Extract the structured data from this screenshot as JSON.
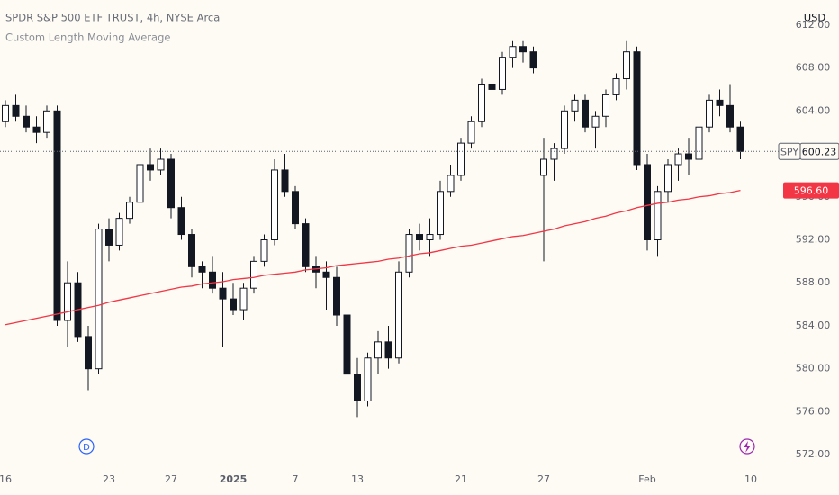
{
  "header": {
    "symbol_title": "SPDR S&P 500 ETF TRUST, 4h, NYSE Arca",
    "indicator": "Custom Length Moving Average",
    "currency": "USD"
  },
  "chart_data": {
    "type": "candlestick",
    "open": [
      603,
      604.5,
      603.5,
      602.5,
      602,
      604,
      584.5,
      588,
      583,
      580,
      593,
      591.5,
      594,
      595.5,
      599,
      598.5,
      599.5,
      595,
      592.5,
      589.5,
      589,
      587.5,
      586.5,
      585.5,
      587.5,
      590,
      592,
      598.5,
      596.5,
      593.5,
      589.5,
      589,
      588.5,
      585,
      579.5,
      577,
      581,
      582.5,
      581,
      589,
      592.5,
      592,
      592.5,
      596.5,
      598,
      601,
      603,
      606.5,
      606,
      609,
      610,
      609.5,
      598,
      599.5,
      600.5,
      604,
      605,
      602.5,
      603.5,
      605.5,
      607,
      609.5,
      599,
      592,
      596.5,
      599,
      600,
      599.5,
      602.5,
      605,
      604.5,
      602.5
    ],
    "high": [
      605,
      605.5,
      604.5,
      603.5,
      604.5,
      604.5,
      590,
      589,
      584,
      593.5,
      594,
      594.5,
      596,
      599.5,
      600.5,
      600.5,
      600,
      596,
      593,
      590,
      590.5,
      589,
      588,
      588,
      590.5,
      592.5,
      599.5,
      600,
      597,
      594,
      590.5,
      590,
      589.5,
      585.5,
      581,
      581.5,
      583.5,
      584,
      590,
      593,
      593.5,
      594,
      597.5,
      599,
      601.5,
      603.5,
      607,
      607.5,
      609.5,
      610.5,
      610.5,
      610,
      601.5,
      601,
      604.5,
      605.5,
      605.5,
      604,
      606,
      607.5,
      610.5,
      610,
      600,
      597,
      599.5,
      600.5,
      601.5,
      603,
      605.5,
      606,
      606.5,
      603
    ],
    "low": [
      602.5,
      603,
      602,
      601,
      601.5,
      584,
      582,
      582.5,
      578,
      579.5,
      590,
      591,
      593.5,
      595,
      597.5,
      598,
      594,
      592,
      588.5,
      587.5,
      587,
      582,
      585,
      584.5,
      587,
      589.5,
      591.5,
      596,
      593,
      589,
      587.5,
      585.5,
      584,
      579,
      575.5,
      576.5,
      579.5,
      580,
      580.5,
      588.5,
      591,
      590.5,
      592,
      596,
      597.5,
      600.5,
      602.5,
      605,
      605.5,
      608,
      608.5,
      607.5,
      590,
      597.5,
      600,
      603,
      602,
      600.5,
      602.5,
      605,
      606,
      598.5,
      591,
      590.5,
      595.5,
      597.5,
      598,
      599,
      602,
      603.5,
      602,
      599.5
    ],
    "close": [
      604.5,
      603.5,
      602.5,
      602,
      604,
      584.5,
      588,
      583,
      580,
      593,
      591.5,
      594,
      595.5,
      599,
      598.5,
      599.5,
      595,
      592.5,
      589.5,
      589,
      587.5,
      586.5,
      585.5,
      587.5,
      590,
      592,
      598.5,
      596.5,
      593.5,
      589.5,
      589,
      588.5,
      585,
      579.5,
      577,
      581,
      582.5,
      581,
      589,
      592.5,
      592,
      592.5,
      596.5,
      598,
      601,
      603,
      606.5,
      606,
      609,
      610,
      609.5,
      608,
      599.5,
      600.5,
      604,
      605,
      602.5,
      603.5,
      605.5,
      607,
      609.5,
      599,
      592,
      596.5,
      599,
      600,
      599.5,
      602.5,
      605,
      604.5,
      602.5,
      600.23
    ],
    "up_color": "#ffffff",
    "down_color": "#131722",
    "wick_color": "#131722",
    "moving_average": {
      "color": "#f23645",
      "values": [
        584.1,
        584.3,
        584.5,
        584.7,
        584.9,
        585.1,
        585.3,
        585.5,
        585.7,
        585.9,
        586.2,
        586.4,
        586.6,
        586.8,
        587.0,
        587.2,
        587.4,
        587.6,
        587.7,
        587.9,
        588.0,
        588.1,
        588.3,
        588.4,
        588.5,
        588.7,
        588.8,
        588.9,
        589.0,
        589.2,
        589.3,
        589.4,
        589.6,
        589.7,
        589.8,
        589.9,
        590.0,
        590.2,
        590.3,
        590.5,
        590.7,
        590.8,
        591.0,
        591.2,
        591.4,
        591.5,
        591.7,
        591.9,
        592.1,
        592.3,
        592.4,
        592.6,
        592.8,
        593.0,
        593.3,
        593.5,
        593.7,
        594.0,
        594.2,
        594.5,
        594.7,
        595.0,
        595.2,
        595.4,
        595.5,
        595.7,
        595.8,
        596.0,
        596.1,
        596.3,
        596.4,
        596.6
      ]
    },
    "ma_label": {
      "value": 596.6,
      "label": "596.60"
    },
    "last_price": {
      "symbol": "SPY",
      "value": 600.23
    },
    "ylim": [
      570,
      614
    ],
    "yticks": [
      {
        "value": 572,
        "label": "572.00"
      },
      {
        "value": 576,
        "label": "576.00"
      },
      {
        "value": 580,
        "label": "580.00"
      },
      {
        "value": 584,
        "label": "584.00"
      },
      {
        "value": 588,
        "label": "588.00"
      },
      {
        "value": 592,
        "label": "592.00"
      },
      {
        "value": 596,
        "label": "596.00"
      },
      {
        "value": 600,
        "label": "600.00"
      },
      {
        "value": 604,
        "label": "604.00"
      },
      {
        "value": 608,
        "label": "608.00"
      },
      {
        "value": 612,
        "label": "612.00"
      }
    ],
    "xticks": [
      {
        "value": 0,
        "label": "16"
      },
      {
        "value": 10,
        "label": "23"
      },
      {
        "value": 16,
        "label": "27"
      },
      {
        "value": 22,
        "label": "2025"
      },
      {
        "value": 28,
        "label": "7"
      },
      {
        "value": 34,
        "label": "13"
      },
      {
        "value": 44,
        "label": "21"
      },
      {
        "value": 52,
        "label": "27"
      },
      {
        "value": 62,
        "label": "Feb"
      },
      {
        "value": 72,
        "label": "10"
      }
    ],
    "dividend_marker": "D"
  }
}
